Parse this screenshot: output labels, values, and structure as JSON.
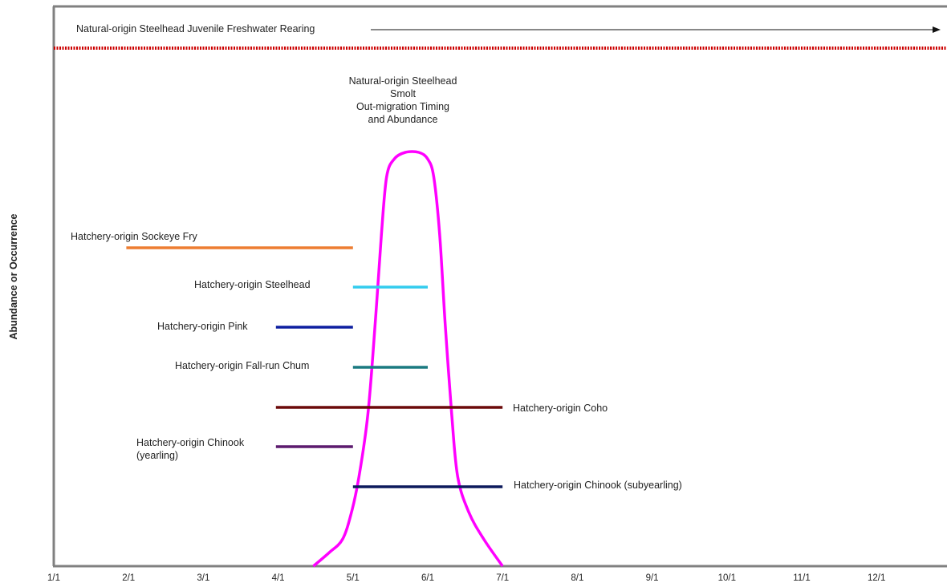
{
  "chart_data": {
    "type": "line",
    "ylabel": "Abundance or Occurrence",
    "x_tick_labels": [
      "1/1",
      "2/1",
      "3/1",
      "4/1",
      "5/1",
      "6/1",
      "7/1",
      "8/1",
      "9/1",
      "10/1",
      "11/1",
      "12/1"
    ],
    "x_range_months": [
      0,
      12
    ],
    "grid": false,
    "freshwater_rearing": {
      "label": "Natural-origin Steelhead Juvenile Freshwater Rearing",
      "color": "#cc0000",
      "spans": "full year"
    },
    "smolt_curve": {
      "label_lines": [
        "Natural-origin Steelhead",
        "Smolt",
        "Out-migration Timing",
        "and Abundance"
      ],
      "color": "#ff00ff",
      "shape": "peak between 5/1 and 6/1; from about 4/15 to 7/1",
      "points": [
        [
          3.47,
          0
        ],
        [
          3.68,
          3
        ],
        [
          3.86,
          6
        ],
        [
          3.98,
          12
        ],
        [
          4.08,
          20
        ],
        [
          4.2,
          34
        ],
        [
          4.3,
          55
        ],
        [
          4.38,
          74
        ],
        [
          4.45,
          87
        ],
        [
          4.55,
          91
        ],
        [
          4.7,
          92.5
        ],
        [
          4.88,
          92.5
        ],
        [
          5.0,
          91
        ],
        [
          5.08,
          87
        ],
        [
          5.16,
          74
        ],
        [
          5.23,
          55
        ],
        [
          5.32,
          34
        ],
        [
          5.4,
          20
        ],
        [
          5.55,
          12
        ],
        [
          5.75,
          6
        ],
        [
          6.0,
          0
        ]
      ]
    },
    "series": [
      {
        "name": "Hatchery-origin Sockeye Fry",
        "start": 0.97,
        "end": 4.0,
        "color": "#ed7d31"
      },
      {
        "name": "Hatchery-origin Steelhead",
        "start": 4.0,
        "end": 5.0,
        "color": "#33ccee"
      },
      {
        "name": "Hatchery-origin Pink",
        "start": 2.97,
        "end": 4.0,
        "color": "#0d1fa0"
      },
      {
        "name": "Hatchery-origin Fall-run Chum",
        "start": 4.0,
        "end": 5.0,
        "color": "#1a7a80"
      },
      {
        "name": "Hatchery-origin Coho",
        "start": 2.97,
        "end": 6.0,
        "color": "#6b0a0a"
      },
      {
        "name": "Hatchery-origin Chinook (yearling)",
        "start": 2.97,
        "end": 4.0,
        "color": "#5c1a6e"
      },
      {
        "name": "Hatchery-origin Chinook (subyearling)",
        "start": 4.0,
        "end": 6.0,
        "color": "#0d1a5c"
      }
    ]
  }
}
